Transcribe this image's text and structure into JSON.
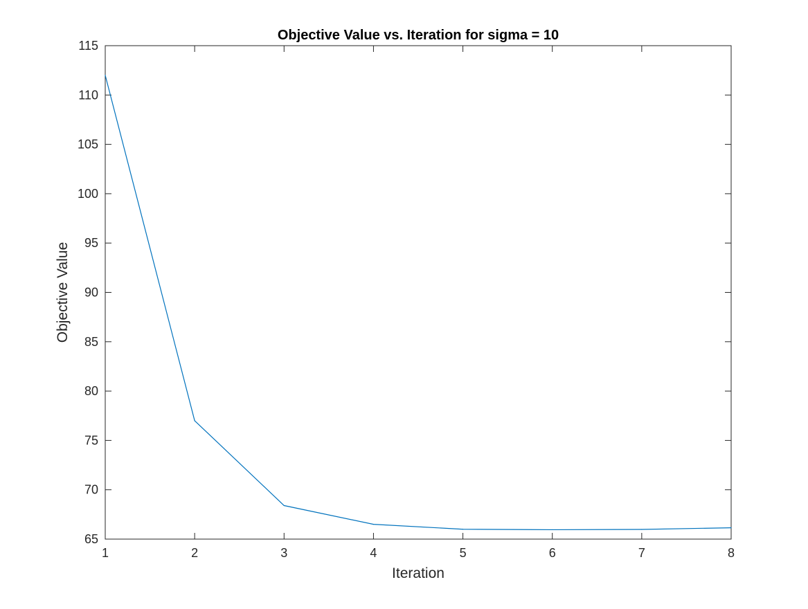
{
  "chart_data": {
    "type": "line",
    "title": "Objective Value vs. Iteration for sigma = 10",
    "xlabel": "Iteration",
    "ylabel": "Objective Value",
    "xlim": [
      1,
      8
    ],
    "ylim": [
      65,
      115
    ],
    "xticks": [
      1,
      2,
      3,
      4,
      5,
      6,
      7,
      8
    ],
    "yticks": [
      65,
      70,
      75,
      80,
      85,
      90,
      95,
      100,
      105,
      110,
      115
    ],
    "grid": false,
    "box": true,
    "series": [
      {
        "color": "#0072BD",
        "x": [
          1,
          2,
          3,
          4,
          5,
          6,
          7,
          8
        ],
        "y": [
          112,
          77,
          68.4,
          66.5,
          66.0,
          65.95,
          65.98,
          66.15
        ]
      }
    ]
  }
}
